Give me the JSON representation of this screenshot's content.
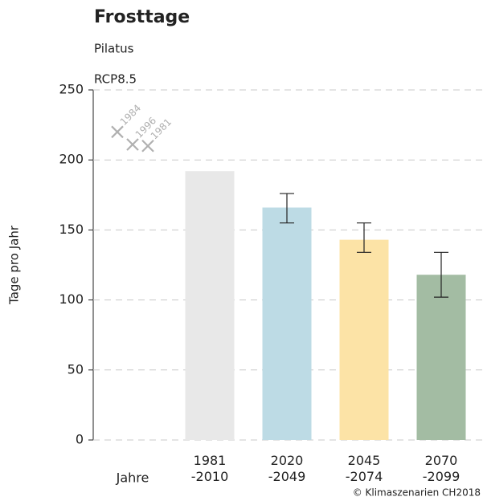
{
  "chart_data": {
    "type": "bar",
    "title": "Frosttage",
    "subtitle": "Pilatus",
    "scenario": "RCP8.5",
    "y_label": "Tage pro Jahr",
    "x_label": "Jahre",
    "categories": [
      [
        "1981",
        "-2010"
      ],
      [
        "2020",
        "-2049"
      ],
      [
        "2045",
        "-2074"
      ],
      [
        "2070",
        "-2099"
      ]
    ],
    "values": [
      192,
      166,
      143,
      118
    ],
    "error_high": [
      null,
      176,
      155,
      134
    ],
    "error_low": [
      null,
      155,
      134,
      102
    ],
    "colors": [
      "#e8e8e8",
      "#bddbe5",
      "#fce3a6",
      "#a3bca3"
    ],
    "observations": [
      {
        "label": "1984",
        "value": 220
      },
      {
        "label": "1996",
        "value": 211
      },
      {
        "label": "1981",
        "value": 210
      }
    ],
    "ylim": [
      0,
      250
    ],
    "yticks": [
      0,
      50,
      100,
      150,
      200,
      250
    ],
    "grid": true,
    "source": "© Klimaszenarien CH2018"
  }
}
